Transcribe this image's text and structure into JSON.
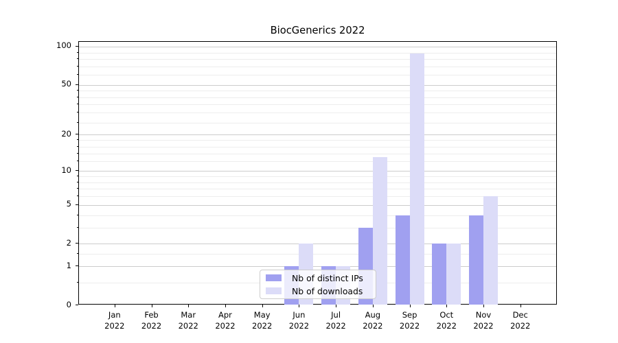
{
  "title": "BiocGenerics 2022",
  "chart_data": {
    "type": "bar",
    "title": "BiocGenerics 2022",
    "categories": [
      "Jan 2022",
      "Feb 2022",
      "Mar 2022",
      "Apr 2022",
      "May 2022",
      "Jun 2022",
      "Jul 2022",
      "Aug 2022",
      "Sep 2022",
      "Oct 2022",
      "Nov 2022",
      "Dec 2022"
    ],
    "series": [
      {
        "name": "Nb of distinct IPs",
        "color": "#a0a0f0",
        "values": [
          0,
          0,
          0,
          0,
          0,
          1,
          1,
          3,
          4,
          2,
          4,
          0
        ]
      },
      {
        "name": "Nb of downloads",
        "color": "#dcdcf8",
        "values": [
          0,
          0,
          0,
          0,
          0,
          2,
          1,
          13,
          88,
          2,
          6,
          0
        ]
      }
    ],
    "xlabel": "",
    "ylabel": "",
    "yscale": "log1p",
    "ylim": [
      0,
      110
    ],
    "y_ticks": [
      0,
      1,
      2,
      5,
      10,
      20,
      50,
      100
    ],
    "y_minor_ticks": [
      0.5,
      1.5,
      3,
      4,
      6,
      7,
      8,
      9,
      12,
      14,
      16,
      18,
      25,
      30,
      35,
      40,
      45,
      60,
      70,
      80,
      90
    ],
    "grid": true,
    "legend_position": "inside-lower-center"
  },
  "legend": {
    "items": [
      {
        "label": "Nb of distinct IPs",
        "color": "#a0a0f0"
      },
      {
        "label": "Nb of downloads",
        "color": "#dcdcf8"
      }
    ]
  },
  "colors": {
    "major_grid": "#cccccc",
    "minor_grid": "#ededed",
    "spine": "#000000",
    "text": "#000000",
    "background": "#ffffff",
    "legend_border": "#cccccc"
  }
}
